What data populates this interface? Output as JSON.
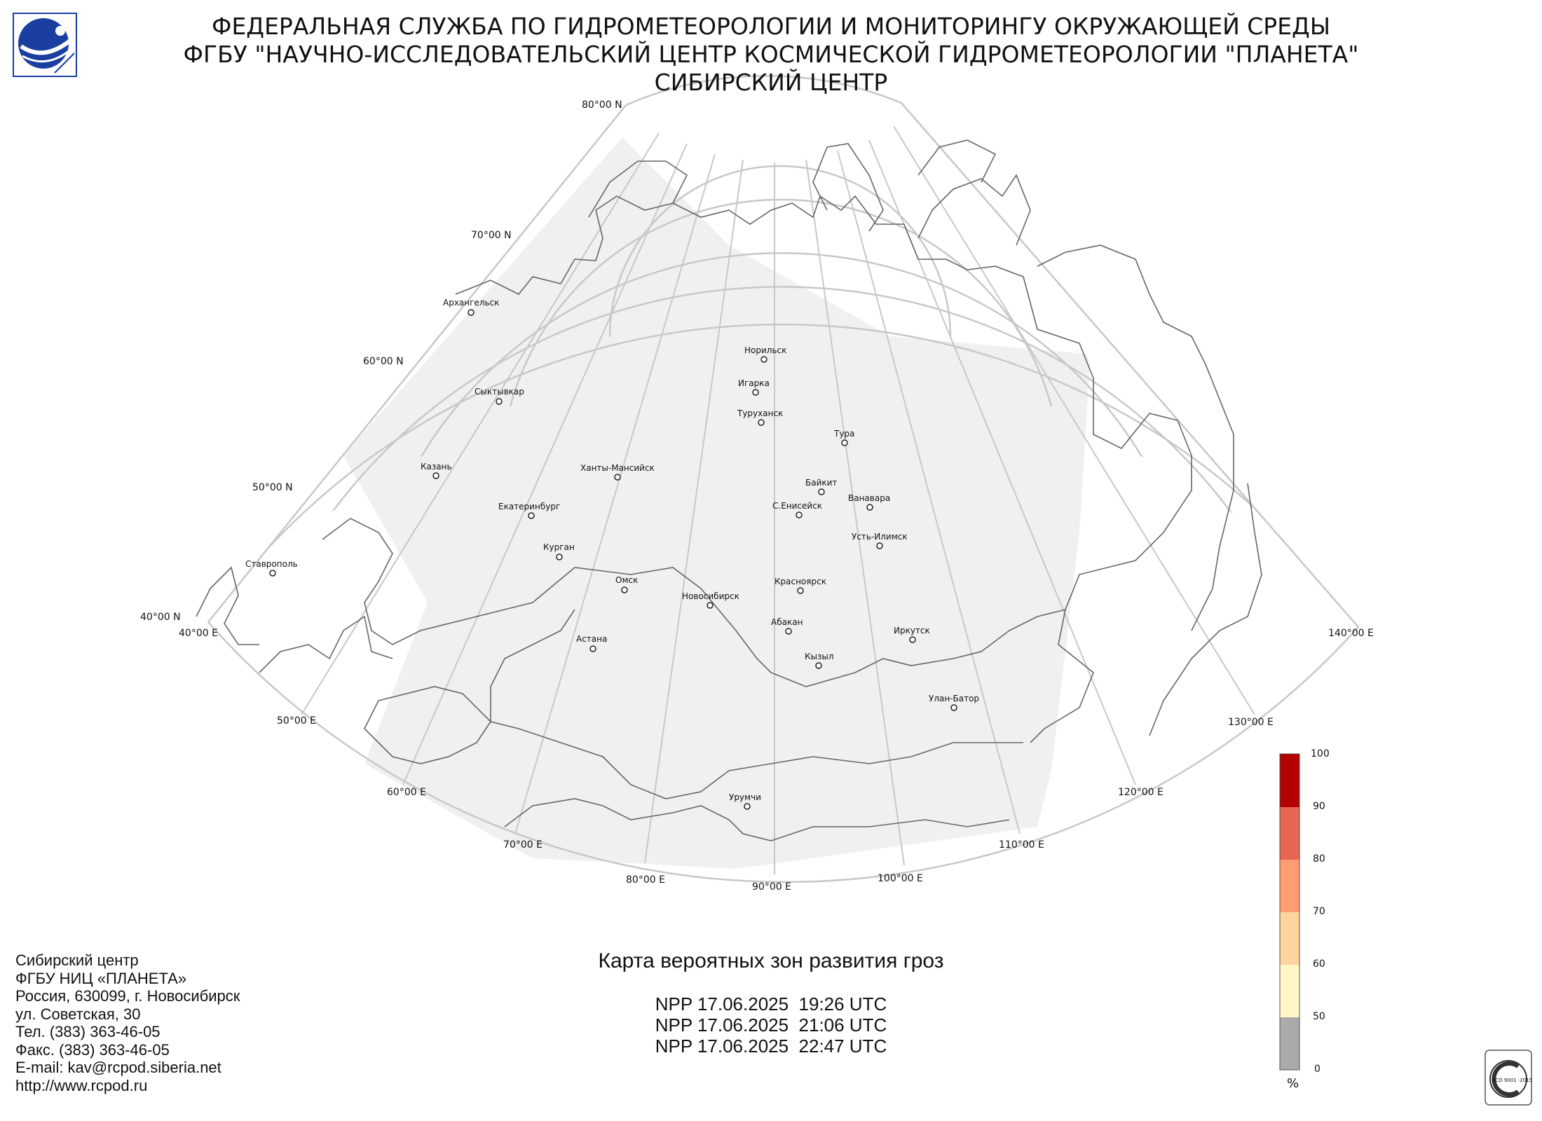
{
  "header": {
    "line1": "ФЕДЕРАЛЬНАЯ СЛУЖБА ПО ГИДРОМЕТЕОРОЛОГИИ И МОНИТОРИНГУ ОКРУЖАЮЩЕЙ СРЕДЫ",
    "line2": "ФГБУ \"НАУЧНО-ИССЛЕДОВАТЕЛЬСКИЙ ЦЕНТР КОСМИЧЕСКОЙ ГИДРОМЕТЕОРОЛОГИИ \"ПЛАНЕТА\"",
    "line3": "СИБИРСКИЙ ЦЕНТР"
  },
  "logo": {
    "icon": "planeta-logo-icon",
    "color": "#1a3fa0"
  },
  "map": {
    "latitude_labels": [
      "80°00 N",
      "70°00 N",
      "60°00 N",
      "50°00 N",
      "40°00 N"
    ],
    "longitude_labels": [
      "40°00 E",
      "50°00 E",
      "60°00 E",
      "70°00 E",
      "80°00 E",
      "90°00 E",
      "100°00 E",
      "110°00 E",
      "120°00 E",
      "130°00 E",
      "140°00 E"
    ],
    "cities": [
      "Архангельск",
      "Сыктывкар",
      "Казань",
      "Екатеринбург",
      "Курган",
      "Ставрополь",
      "Ханты-Мансийск",
      "Омск",
      "Астана",
      "Новосибирск",
      "Норильск",
      "Игарка",
      "Туруханск",
      "Тура",
      "Байкит",
      "С.Енисейск",
      "Ванавара",
      "Усть-Илимск",
      "Красноярск",
      "Абакан",
      "Кызыл",
      "Иркутск",
      "Улан-Батор",
      "Урумчи"
    ],
    "colors": {
      "coverage": "#f0f0f0",
      "grid": "#c8c8c8",
      "border": "#666666"
    }
  },
  "legend": {
    "ticks": [
      "100",
      "90",
      "80",
      "70",
      "60",
      "50",
      "0"
    ],
    "unit": "%",
    "colors": [
      "#b30000",
      "#e34a33",
      "#fc8d59",
      "#fdd49e",
      "#fff7c8",
      "#aaaaaa"
    ]
  },
  "footer": {
    "org_lines": [
      "Сибирский центр",
      "ФГБУ НИЦ «ПЛАНЕТА»",
      "Россия, 630099, г. Новосибирск",
      "ул. Советская, 30",
      "Тел. (383) 363-46-05",
      "Факс. (383) 363-46-05",
      "E-mail: kav@rcpod.siberia.net",
      "http://www.rcpod.ru"
    ],
    "map_title": "Карта вероятных зон развития гроз",
    "passes": [
      "NPP 17.06.2025  19:26 UTC",
      "NPP 17.06.2025  21:06 UTC",
      "NPP 17.06.2025  22:47 UTC"
    ]
  },
  "iso_badge": {
    "icon": "iso-9001-badge-icon",
    "text": "ИСО 9001 -2015"
  }
}
